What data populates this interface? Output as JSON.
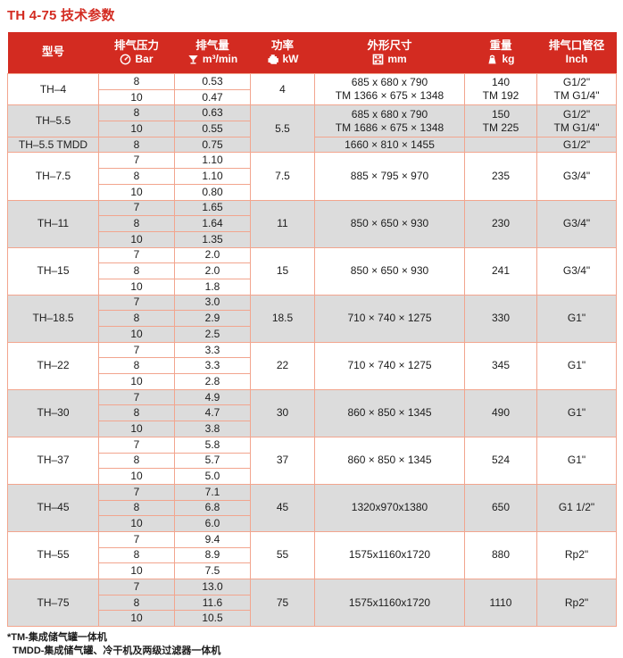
{
  "page": {
    "title": "TH 4-75 技术参数",
    "footnotes": [
      "*TM-集成储气罐一体机",
      "TMDD-集成储气罐、冷干机及两级过滤器一体机"
    ]
  },
  "colors": {
    "header_bg": "#d32b21",
    "title_red": "#d32b21",
    "row_shaded": "#dcdcdc",
    "grid_border": "#f2a58e",
    "header_text": "#ffffff",
    "body_text": "#1c1c1c"
  },
  "table": {
    "columns": [
      {
        "label": "型号",
        "sub": "",
        "icon": ""
      },
      {
        "label": "排气压力",
        "sub": "Bar",
        "icon": "gauge-icon"
      },
      {
        "label": "排气量",
        "sub": "m³/min",
        "icon": "funnel-icon"
      },
      {
        "label": "功率",
        "sub": "kW",
        "icon": "engine-icon"
      },
      {
        "label": "外形尺寸",
        "sub": "mm",
        "icon": "dimensions-icon"
      },
      {
        "label": "重量",
        "sub": "kg",
        "icon": "weight-icon"
      },
      {
        "label": "排气口管径",
        "sub": "Inch",
        "icon": ""
      }
    ],
    "groups": [
      {
        "model": "TH–4",
        "shaded": false,
        "power": "4",
        "power_rowspan": 2,
        "rows": [
          [
            "8",
            "0.53"
          ],
          [
            "10",
            "0.47"
          ]
        ],
        "dims": [
          "685 x 680 x 790",
          "TM 1366 × 675 × 1348"
        ],
        "weight": [
          "140",
          "TM 192"
        ],
        "pipe": [
          "G1/2\"",
          "TM G1/4\""
        ]
      },
      {
        "model": "TH–5.5",
        "shaded": true,
        "power": "5.5",
        "power_rowspan": 3,
        "rows": [
          [
            "8",
            "0.63"
          ],
          [
            "10",
            "0.55"
          ]
        ],
        "dims": [
          "685 x 680 x 790",
          "TM 1686 × 675 × 1348"
        ],
        "weight": [
          "150",
          "TM 225"
        ],
        "pipe": [
          "G1/2\"",
          "TM G1/4\""
        ]
      },
      {
        "model": "TH–5.5 TMDD",
        "shaded": true,
        "power": null,
        "power_rowspan": 0,
        "rows": [
          [
            "8",
            "0.75"
          ]
        ],
        "dims": [
          "1660 × 810 × 1455"
        ],
        "weight": [
          ""
        ],
        "pipe": [
          "G1/2\""
        ]
      },
      {
        "model": "TH–7.5",
        "shaded": false,
        "power": "7.5",
        "power_rowspan": 3,
        "rows": [
          [
            "7",
            "1.10"
          ],
          [
            "8",
            "1.10"
          ],
          [
            "10",
            "0.80"
          ]
        ],
        "dims": [
          "885 × 795 × 970"
        ],
        "weight": [
          "235"
        ],
        "pipe": [
          "G3/4\""
        ]
      },
      {
        "model": "TH–11",
        "shaded": true,
        "power": "11",
        "power_rowspan": 3,
        "rows": [
          [
            "7",
            "1.65"
          ],
          [
            "8",
            "1.64"
          ],
          [
            "10",
            "1.35"
          ]
        ],
        "dims": [
          "850 × 650 × 930"
        ],
        "weight": [
          "230"
        ],
        "pipe": [
          "G3/4\""
        ]
      },
      {
        "model": "TH–15",
        "shaded": false,
        "power": "15",
        "power_rowspan": 3,
        "rows": [
          [
            "7",
            "2.0"
          ],
          [
            "8",
            "2.0"
          ],
          [
            "10",
            "1.8"
          ]
        ],
        "dims": [
          "850 × 650 × 930"
        ],
        "weight": [
          "241"
        ],
        "pipe": [
          "G3/4\""
        ]
      },
      {
        "model": "TH–18.5",
        "shaded": true,
        "power": "18.5",
        "power_rowspan": 3,
        "rows": [
          [
            "7",
            "3.0"
          ],
          [
            "8",
            "2.9"
          ],
          [
            "10",
            "2.5"
          ]
        ],
        "dims": [
          "710 × 740 × 1275"
        ],
        "weight": [
          "330"
        ],
        "pipe": [
          "G1\""
        ]
      },
      {
        "model": "TH–22",
        "shaded": false,
        "power": "22",
        "power_rowspan": 3,
        "rows": [
          [
            "7",
            "3.3"
          ],
          [
            "8",
            "3.3"
          ],
          [
            "10",
            "2.8"
          ]
        ],
        "dims": [
          "710 × 740 × 1275"
        ],
        "weight": [
          "345"
        ],
        "pipe": [
          "G1\""
        ]
      },
      {
        "model": "TH–30",
        "shaded": true,
        "power": "30",
        "power_rowspan": 3,
        "rows": [
          [
            "7",
            "4.9"
          ],
          [
            "8",
            "4.7"
          ],
          [
            "10",
            "3.8"
          ]
        ],
        "dims": [
          "860 × 850 × 1345"
        ],
        "weight": [
          "490"
        ],
        "pipe": [
          "G1\""
        ]
      },
      {
        "model": "TH–37",
        "shaded": false,
        "power": "37",
        "power_rowspan": 3,
        "rows": [
          [
            "7",
            "5.8"
          ],
          [
            "8",
            "5.7"
          ],
          [
            "10",
            "5.0"
          ]
        ],
        "dims": [
          "860 × 850 × 1345"
        ],
        "weight": [
          "524"
        ],
        "pipe": [
          "G1\""
        ]
      },
      {
        "model": "TH–45",
        "shaded": true,
        "power": "45",
        "power_rowspan": 3,
        "rows": [
          [
            "7",
            "7.1"
          ],
          [
            "8",
            "6.8"
          ],
          [
            "10",
            "6.0"
          ]
        ],
        "dims": [
          "1320x970x1380"
        ],
        "weight": [
          "650"
        ],
        "pipe": [
          "G1 1/2\""
        ]
      },
      {
        "model": "TH–55",
        "shaded": false,
        "power": "55",
        "power_rowspan": 3,
        "rows": [
          [
            "7",
            "9.4"
          ],
          [
            "8",
            "8.9"
          ],
          [
            "10",
            "7.5"
          ]
        ],
        "dims": [
          "1575x1160x1720"
        ],
        "weight": [
          "880"
        ],
        "pipe": [
          "Rp2\""
        ]
      },
      {
        "model": "TH–75",
        "shaded": true,
        "power": "75",
        "power_rowspan": 3,
        "rows": [
          [
            "7",
            "13.0"
          ],
          [
            "8",
            "11.6"
          ],
          [
            "10",
            "10.5"
          ]
        ],
        "dims": [
          "1575x1160x1720"
        ],
        "weight": [
          "1110"
        ],
        "pipe": [
          "Rp2\""
        ]
      }
    ]
  }
}
